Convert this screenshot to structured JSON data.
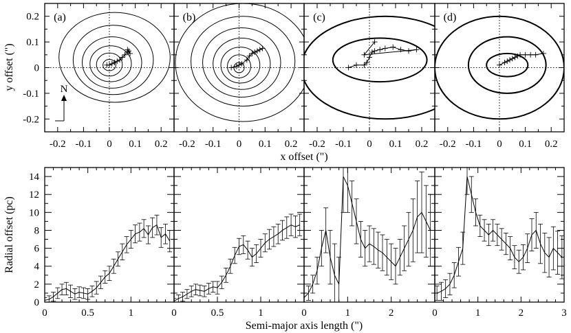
{
  "chart_data": [
    {
      "type": "scatter",
      "row": "top",
      "xlabel": "x offset (\")",
      "ylabel": "y offset (\")",
      "xlim": [
        -0.25,
        0.25
      ],
      "ylim": [
        -0.25,
        0.25
      ],
      "xticks": [
        "-0.2",
        "-0.1",
        "0",
        "0.1",
        "0.2"
      ],
      "yticks": [
        "-0.2",
        "-0.1",
        "0",
        "0.1",
        "0.2"
      ],
      "north_arrow_label": "N",
      "panels": [
        {
          "label": "(a)",
          "contours": [
            {
              "a": 0.025,
              "b": 0.022,
              "cx": 0.0,
              "cy": 0.01
            },
            {
              "a": 0.05,
              "b": 0.045,
              "cx": 0.0,
              "cy": 0.012
            },
            {
              "a": 0.08,
              "b": 0.07,
              "cx": 0.005,
              "cy": 0.015
            },
            {
              "a": 0.115,
              "b": 0.1,
              "cx": 0.01,
              "cy": 0.02
            },
            {
              "a": 0.155,
              "b": 0.135,
              "cx": 0.015,
              "cy": 0.03
            },
            {
              "a": 0.215,
              "b": 0.175,
              "cx": 0.02,
              "cy": 0.04
            }
          ],
          "track": [
            [
              -0.01,
              0.01
            ],
            [
              0.0,
              0.01
            ],
            [
              0.01,
              0.015
            ],
            [
              0.02,
              0.02
            ],
            [
              0.03,
              0.025
            ],
            [
              0.04,
              0.03
            ],
            [
              0.05,
              0.04
            ],
            [
              0.06,
              0.05
            ],
            [
              0.07,
              0.06
            ],
            [
              0.075,
              0.065
            ],
            [
              0.08,
              0.055
            ],
            [
              0.07,
              0.07
            ]
          ]
        },
        {
          "label": "(b)",
          "contours": [
            {
              "a": 0.02,
              "b": 0.02,
              "cx": 0.0,
              "cy": 0.0
            },
            {
              "a": 0.045,
              "b": 0.045,
              "cx": 0.0,
              "cy": 0.005
            },
            {
              "a": 0.075,
              "b": 0.07,
              "cx": 0.005,
              "cy": 0.01
            },
            {
              "a": 0.11,
              "b": 0.1,
              "cx": 0.01,
              "cy": 0.015
            },
            {
              "a": 0.15,
              "b": 0.135,
              "cx": 0.01,
              "cy": 0.02
            },
            {
              "a": 0.2,
              "b": 0.175,
              "cx": 0.015,
              "cy": 0.025
            },
            {
              "a": 0.26,
              "b": 0.23,
              "cx": 0.015,
              "cy": 0.02
            }
          ],
          "track": [
            [
              -0.03,
              0.0
            ],
            [
              -0.01,
              0.005
            ],
            [
              0.0,
              0.01
            ],
            [
              0.01,
              0.015
            ],
            [
              0.03,
              0.03
            ],
            [
              0.04,
              0.045
            ],
            [
              0.05,
              0.055
            ],
            [
              0.06,
              0.06
            ],
            [
              0.07,
              0.065
            ],
            [
              0.08,
              0.07
            ],
            [
              0.09,
              0.075
            ]
          ]
        },
        {
          "label": "(c)",
          "contours": [
            {
              "a": 0.18,
              "b": 0.085,
              "cx": 0.04,
              "cy": 0.03
            },
            {
              "a": 0.32,
              "b": 0.2,
              "cx": 0.06,
              "cy": 0.0
            }
          ],
          "track": [
            [
              -0.08,
              0.0
            ],
            [
              -0.05,
              0.01
            ],
            [
              -0.02,
              0.01
            ],
            [
              -0.01,
              0.02
            ],
            [
              0.0,
              0.04
            ],
            [
              0.01,
              0.06
            ],
            [
              0.02,
              0.065
            ],
            [
              0.04,
              0.07
            ],
            [
              0.06,
              0.075
            ],
            [
              0.09,
              0.08
            ],
            [
              0.12,
              0.07
            ],
            [
              0.15,
              0.065
            ],
            [
              0.18,
              0.07
            ],
            [
              -0.02,
              0.05
            ],
            [
              0.02,
              0.1
            ]
          ]
        },
        {
          "label": "(d)",
          "contours": [
            {
              "a": 0.08,
              "b": 0.045,
              "cx": 0.03,
              "cy": 0.01
            },
            {
              "a": 0.15,
              "b": 0.11,
              "cx": 0.03,
              "cy": 0.01
            },
            {
              "a": 0.25,
              "b": 0.2,
              "cx": 0.0,
              "cy": 0.0
            }
          ],
          "track": [
            [
              0.0,
              0.01
            ],
            [
              0.02,
              0.02
            ],
            [
              0.03,
              0.025
            ],
            [
              0.04,
              0.03
            ],
            [
              0.05,
              0.035
            ],
            [
              0.06,
              0.04
            ],
            [
              0.07,
              0.045
            ],
            [
              0.08,
              0.05
            ],
            [
              0.1,
              0.05
            ],
            [
              0.12,
              0.05
            ],
            [
              0.14,
              0.05
            ],
            [
              0.17,
              0.055
            ]
          ]
        }
      ]
    },
    {
      "type": "line",
      "row": "bottom",
      "xlabel": "Semi-major axis length (\")",
      "ylabel": "Radial offset (pc)",
      "ylim": [
        0,
        15
      ],
      "yticks": [
        "0",
        "2",
        "4",
        "6",
        "8",
        "10",
        "12",
        "14"
      ],
      "panels": [
        {
          "xlim": [
            0,
            1.5
          ],
          "xticks": [
            "0",
            "0.5",
            "1"
          ],
          "series": [
            {
              "x": 0.0,
              "y": 0.2,
              "e": 0.3
            },
            {
              "x": 0.05,
              "y": 0.3,
              "e": 0.4
            },
            {
              "x": 0.1,
              "y": 0.6,
              "e": 0.5
            },
            {
              "x": 0.15,
              "y": 1.0,
              "e": 0.6
            },
            {
              "x": 0.2,
              "y": 1.4,
              "e": 0.6
            },
            {
              "x": 0.25,
              "y": 1.5,
              "e": 0.7
            },
            {
              "x": 0.3,
              "y": 1.2,
              "e": 0.7
            },
            {
              "x": 0.35,
              "y": 0.9,
              "e": 0.6
            },
            {
              "x": 0.4,
              "y": 1.1,
              "e": 0.6
            },
            {
              "x": 0.45,
              "y": 1.0,
              "e": 0.6
            },
            {
              "x": 0.5,
              "y": 0.9,
              "e": 0.6
            },
            {
              "x": 0.55,
              "y": 1.2,
              "e": 0.6
            },
            {
              "x": 0.6,
              "y": 1.6,
              "e": 0.7
            },
            {
              "x": 0.65,
              "y": 2.2,
              "e": 0.7
            },
            {
              "x": 0.7,
              "y": 2.8,
              "e": 0.7
            },
            {
              "x": 0.75,
              "y": 3.2,
              "e": 0.8
            },
            {
              "x": 0.8,
              "y": 4.0,
              "e": 0.8
            },
            {
              "x": 0.85,
              "y": 4.8,
              "e": 0.8
            },
            {
              "x": 0.9,
              "y": 5.6,
              "e": 0.9
            },
            {
              "x": 0.95,
              "y": 6.4,
              "e": 0.9
            },
            {
              "x": 1.0,
              "y": 7.0,
              "e": 1.0
            },
            {
              "x": 1.05,
              "y": 7.6,
              "e": 1.0
            },
            {
              "x": 1.1,
              "y": 7.8,
              "e": 1.0
            },
            {
              "x": 1.15,
              "y": 8.2,
              "e": 1.0
            },
            {
              "x": 1.2,
              "y": 7.5,
              "e": 1.0
            },
            {
              "x": 1.25,
              "y": 8.3,
              "e": 1.1
            },
            {
              "x": 1.3,
              "y": 8.6,
              "e": 1.1
            },
            {
              "x": 1.35,
              "y": 7.2,
              "e": 1.1
            },
            {
              "x": 1.4,
              "y": 7.6,
              "e": 1.1
            },
            {
              "x": 1.45,
              "y": 6.8,
              "e": 1.2
            }
          ]
        },
        {
          "xlim": [
            0,
            1.5
          ],
          "xticks": [
            "0",
            "0.5",
            "1"
          ],
          "series": [
            {
              "x": 0.0,
              "y": 0.1,
              "e": 0.3
            },
            {
              "x": 0.05,
              "y": 0.4,
              "e": 0.4
            },
            {
              "x": 0.1,
              "y": 0.6,
              "e": 0.5
            },
            {
              "x": 0.15,
              "y": 0.9,
              "e": 0.5
            },
            {
              "x": 0.2,
              "y": 1.2,
              "e": 0.6
            },
            {
              "x": 0.25,
              "y": 1.4,
              "e": 0.6
            },
            {
              "x": 0.3,
              "y": 1.3,
              "e": 0.6
            },
            {
              "x": 0.35,
              "y": 1.2,
              "e": 0.6
            },
            {
              "x": 0.4,
              "y": 1.5,
              "e": 0.6
            },
            {
              "x": 0.45,
              "y": 1.7,
              "e": 0.6
            },
            {
              "x": 0.5,
              "y": 1.6,
              "e": 0.7
            },
            {
              "x": 0.55,
              "y": 2.2,
              "e": 0.7
            },
            {
              "x": 0.6,
              "y": 3.0,
              "e": 0.8
            },
            {
              "x": 0.65,
              "y": 4.0,
              "e": 0.8
            },
            {
              "x": 0.7,
              "y": 5.2,
              "e": 0.9
            },
            {
              "x": 0.75,
              "y": 6.2,
              "e": 0.9
            },
            {
              "x": 0.8,
              "y": 6.4,
              "e": 1.0
            },
            {
              "x": 0.85,
              "y": 5.8,
              "e": 1.0
            },
            {
              "x": 0.9,
              "y": 5.0,
              "e": 1.0
            },
            {
              "x": 0.95,
              "y": 5.4,
              "e": 1.0
            },
            {
              "x": 1.0,
              "y": 6.0,
              "e": 1.0
            },
            {
              "x": 1.05,
              "y": 6.6,
              "e": 1.0
            },
            {
              "x": 1.1,
              "y": 7.0,
              "e": 1.1
            },
            {
              "x": 1.15,
              "y": 7.3,
              "e": 1.1
            },
            {
              "x": 1.2,
              "y": 7.6,
              "e": 1.1
            },
            {
              "x": 1.25,
              "y": 8.0,
              "e": 1.1
            },
            {
              "x": 1.3,
              "y": 8.3,
              "e": 1.2
            },
            {
              "x": 1.35,
              "y": 8.6,
              "e": 1.2
            },
            {
              "x": 1.4,
              "y": 8.4,
              "e": 1.2
            },
            {
              "x": 1.45,
              "y": 8.6,
              "e": 1.2
            }
          ]
        },
        {
          "xlim": [
            0,
            3
          ],
          "xticks": [
            "0",
            "1",
            "2"
          ],
          "series": [
            {
              "x": 0.0,
              "y": 0.5,
              "e": 0.5
            },
            {
              "x": 0.1,
              "y": 1.0,
              "e": 0.8
            },
            {
              "x": 0.2,
              "y": 2.0,
              "e": 1.0
            },
            {
              "x": 0.3,
              "y": 3.5,
              "e": 1.5
            },
            {
              "x": 0.4,
              "y": 6.0,
              "e": 2.0
            },
            {
              "x": 0.5,
              "y": 8.0,
              "e": 2.5
            },
            {
              "x": 0.6,
              "y": 5.0,
              "e": 3.0
            },
            {
              "x": 0.7,
              "y": 3.0,
              "e": 3.5
            },
            {
              "x": 0.8,
              "y": 2.0,
              "e": 3.0
            },
            {
              "x": 0.9,
              "y": 14.0,
              "e": 4.0
            },
            {
              "x": 1.0,
              "y": 13.0,
              "e": 3.0
            },
            {
              "x": 1.1,
              "y": 11.0,
              "e": 2.5
            },
            {
              "x": 1.2,
              "y": 9.0,
              "e": 2.5
            },
            {
              "x": 1.3,
              "y": 7.0,
              "e": 2.0
            },
            {
              "x": 1.4,
              "y": 6.0,
              "e": 2.0
            },
            {
              "x": 1.5,
              "y": 6.5,
              "e": 2.0
            },
            {
              "x": 1.6,
              "y": 6.2,
              "e": 2.0
            },
            {
              "x": 1.7,
              "y": 5.8,
              "e": 2.0
            },
            {
              "x": 1.8,
              "y": 5.5,
              "e": 2.0
            },
            {
              "x": 1.9,
              "y": 5.0,
              "e": 2.0
            },
            {
              "x": 2.0,
              "y": 4.5,
              "e": 2.0
            },
            {
              "x": 2.1,
              "y": 4.0,
              "e": 2.0
            },
            {
              "x": 2.2,
              "y": 5.0,
              "e": 2.0
            },
            {
              "x": 2.3,
              "y": 6.0,
              "e": 2.5
            },
            {
              "x": 2.4,
              "y": 7.0,
              "e": 3.0
            },
            {
              "x": 2.5,
              "y": 8.0,
              "e": 3.5
            },
            {
              "x": 2.6,
              "y": 9.5,
              "e": 4.0
            },
            {
              "x": 2.7,
              "y": 10.0,
              "e": 4.5
            },
            {
              "x": 2.8,
              "y": 9.0,
              "e": 4.0
            },
            {
              "x": 2.9,
              "y": 8.0,
              "e": 4.0
            }
          ]
        },
        {
          "xlim": [
            0,
            3
          ],
          "xticks": [
            "0",
            "1",
            "2",
            "3"
          ],
          "series": [
            {
              "x": 0.05,
              "y": 1.0,
              "e": 0.8
            },
            {
              "x": 0.15,
              "y": 1.2,
              "e": 1.0
            },
            {
              "x": 0.25,
              "y": 1.5,
              "e": 1.0
            },
            {
              "x": 0.35,
              "y": 2.0,
              "e": 1.2
            },
            {
              "x": 0.45,
              "y": 3.0,
              "e": 1.4
            },
            {
              "x": 0.55,
              "y": 4.5,
              "e": 1.6
            },
            {
              "x": 0.65,
              "y": 6.0,
              "e": 1.8
            },
            {
              "x": 0.75,
              "y": 14.0,
              "e": 2.0
            },
            {
              "x": 0.85,
              "y": 12.0,
              "e": 2.0
            },
            {
              "x": 0.95,
              "y": 10.0,
              "e": 1.5
            },
            {
              "x": 1.05,
              "y": 8.5,
              "e": 1.2
            },
            {
              "x": 1.15,
              "y": 8.0,
              "e": 1.2
            },
            {
              "x": 1.25,
              "y": 7.5,
              "e": 1.2
            },
            {
              "x": 1.35,
              "y": 8.0,
              "e": 1.2
            },
            {
              "x": 1.45,
              "y": 7.5,
              "e": 1.2
            },
            {
              "x": 1.55,
              "y": 7.0,
              "e": 1.2
            },
            {
              "x": 1.65,
              "y": 6.5,
              "e": 1.2
            },
            {
              "x": 1.75,
              "y": 6.0,
              "e": 1.3
            },
            {
              "x": 1.85,
              "y": 5.0,
              "e": 1.3
            },
            {
              "x": 1.95,
              "y": 4.5,
              "e": 1.3
            },
            {
              "x": 2.05,
              "y": 5.0,
              "e": 1.4
            },
            {
              "x": 2.15,
              "y": 6.0,
              "e": 1.6
            },
            {
              "x": 2.25,
              "y": 7.5,
              "e": 1.8
            },
            {
              "x": 2.35,
              "y": 8.0,
              "e": 2.0
            },
            {
              "x": 2.45,
              "y": 6.5,
              "e": 2.2
            },
            {
              "x": 2.55,
              "y": 5.5,
              "e": 2.2
            },
            {
              "x": 2.65,
              "y": 5.0,
              "e": 2.2
            },
            {
              "x": 2.75,
              "y": 6.0,
              "e": 2.4
            },
            {
              "x": 2.85,
              "y": 5.5,
              "e": 2.4
            },
            {
              "x": 2.95,
              "y": 5.0,
              "e": 2.4
            }
          ]
        }
      ]
    }
  ]
}
